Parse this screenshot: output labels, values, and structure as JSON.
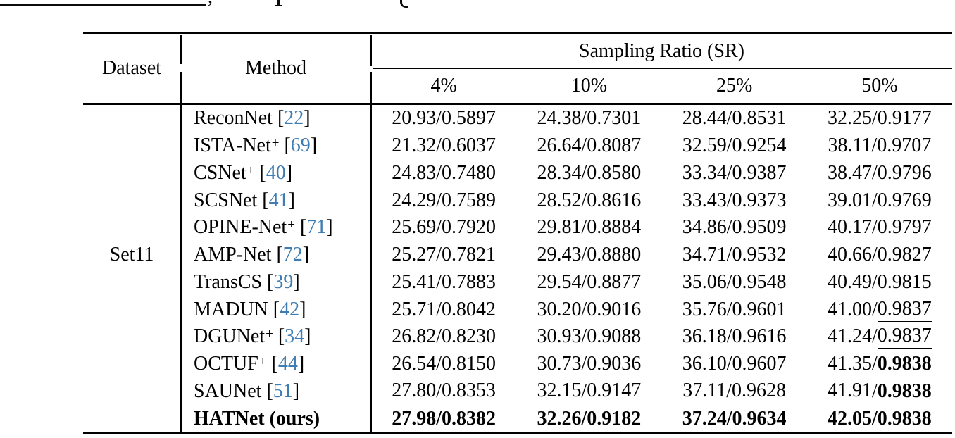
{
  "page": {
    "top_fragment": {
      "comma": ","
    }
  },
  "colors": {
    "text": "#000000",
    "citation": "#3e7cb1",
    "rule": "#000000",
    "background": "#ffffff"
  },
  "table": {
    "header": {
      "dataset": "Dataset",
      "method": "Method",
      "group": "Sampling Ratio (SR)",
      "ratios": [
        "4%",
        "10%",
        "25%",
        "50%"
      ]
    },
    "dataset": {
      "label": "Set11",
      "row_index": 5
    },
    "rows": [
      {
        "method": "ReconNet",
        "sup": "",
        "cite": "22",
        "bold": false,
        "cells": [
          {
            "psnr": "20.93",
            "psnr_style": "",
            "ssim": "0.5897",
            "ssim_style": ""
          },
          {
            "psnr": "24.38",
            "psnr_style": "",
            "ssim": "0.7301",
            "ssim_style": ""
          },
          {
            "psnr": "28.44",
            "psnr_style": "",
            "ssim": "0.8531",
            "ssim_style": ""
          },
          {
            "psnr": "32.25",
            "psnr_style": "",
            "ssim": "0.9177",
            "ssim_style": ""
          }
        ]
      },
      {
        "method": "ISTA-Net",
        "sup": "+",
        "cite": "69",
        "bold": false,
        "cells": [
          {
            "psnr": "21.32",
            "psnr_style": "",
            "ssim": "0.6037",
            "ssim_style": ""
          },
          {
            "psnr": "26.64",
            "psnr_style": "",
            "ssim": "0.8087",
            "ssim_style": ""
          },
          {
            "psnr": "32.59",
            "psnr_style": "",
            "ssim": "0.9254",
            "ssim_style": ""
          },
          {
            "psnr": "38.11",
            "psnr_style": "",
            "ssim": "0.9707",
            "ssim_style": ""
          }
        ]
      },
      {
        "method": "CSNet",
        "sup": "+",
        "cite": "40",
        "bold": false,
        "cells": [
          {
            "psnr": "24.83",
            "psnr_style": "",
            "ssim": "0.7480",
            "ssim_style": ""
          },
          {
            "psnr": "28.34",
            "psnr_style": "",
            "ssim": "0.8580",
            "ssim_style": ""
          },
          {
            "psnr": "33.34",
            "psnr_style": "",
            "ssim": "0.9387",
            "ssim_style": ""
          },
          {
            "psnr": "38.47",
            "psnr_style": "",
            "ssim": "0.9796",
            "ssim_style": ""
          }
        ]
      },
      {
        "method": "SCSNet",
        "sup": "",
        "cite": "41",
        "bold": false,
        "cells": [
          {
            "psnr": "24.29",
            "psnr_style": "",
            "ssim": "0.7589",
            "ssim_style": ""
          },
          {
            "psnr": "28.52",
            "psnr_style": "",
            "ssim": "0.8616",
            "ssim_style": ""
          },
          {
            "psnr": "33.43",
            "psnr_style": "",
            "ssim": "0.9373",
            "ssim_style": ""
          },
          {
            "psnr": "39.01",
            "psnr_style": "",
            "ssim": "0.9769",
            "ssim_style": ""
          }
        ]
      },
      {
        "method": "OPINE-Net",
        "sup": "+",
        "cite": "71",
        "bold": false,
        "cells": [
          {
            "psnr": "25.69",
            "psnr_style": "",
            "ssim": "0.7920",
            "ssim_style": ""
          },
          {
            "psnr": "29.81",
            "psnr_style": "",
            "ssim": "0.8884",
            "ssim_style": ""
          },
          {
            "psnr": "34.86",
            "psnr_style": "",
            "ssim": "0.9509",
            "ssim_style": ""
          },
          {
            "psnr": "40.17",
            "psnr_style": "",
            "ssim": "0.9797",
            "ssim_style": ""
          }
        ]
      },
      {
        "method": "AMP-Net",
        "sup": "",
        "cite": "72",
        "bold": false,
        "cells": [
          {
            "psnr": "25.27",
            "psnr_style": "",
            "ssim": "0.7821",
            "ssim_style": ""
          },
          {
            "psnr": "29.43",
            "psnr_style": "",
            "ssim": "0.8880",
            "ssim_style": ""
          },
          {
            "psnr": "34.71",
            "psnr_style": "",
            "ssim": "0.9532",
            "ssim_style": ""
          },
          {
            "psnr": "40.66",
            "psnr_style": "",
            "ssim": "0.9827",
            "ssim_style": ""
          }
        ]
      },
      {
        "method": "TransCS",
        "sup": "",
        "cite": "39",
        "bold": false,
        "cells": [
          {
            "psnr": "25.41",
            "psnr_style": "",
            "ssim": "0.7883",
            "ssim_style": ""
          },
          {
            "psnr": "29.54",
            "psnr_style": "",
            "ssim": "0.8877",
            "ssim_style": ""
          },
          {
            "psnr": "35.06",
            "psnr_style": "",
            "ssim": "0.9548",
            "ssim_style": ""
          },
          {
            "psnr": "40.49",
            "psnr_style": "",
            "ssim": "0.9815",
            "ssim_style": ""
          }
        ]
      },
      {
        "method": "MADUN",
        "sup": "",
        "cite": "42",
        "bold": false,
        "cells": [
          {
            "psnr": "25.71",
            "psnr_style": "",
            "ssim": "0.8042",
            "ssim_style": ""
          },
          {
            "psnr": "30.20",
            "psnr_style": "",
            "ssim": "0.9016",
            "ssim_style": ""
          },
          {
            "psnr": "35.76",
            "psnr_style": "",
            "ssim": "0.9601",
            "ssim_style": ""
          },
          {
            "psnr": "41.00",
            "psnr_style": "",
            "ssim": "0.9837",
            "ssim_style": "u"
          }
        ]
      },
      {
        "method": "DGUNet",
        "sup": "+",
        "cite": "34",
        "bold": false,
        "cells": [
          {
            "psnr": "26.82",
            "psnr_style": "",
            "ssim": "0.8230",
            "ssim_style": ""
          },
          {
            "psnr": "30.93",
            "psnr_style": "",
            "ssim": "0.9088",
            "ssim_style": ""
          },
          {
            "psnr": "36.18",
            "psnr_style": "",
            "ssim": "0.9616",
            "ssim_style": ""
          },
          {
            "psnr": "41.24",
            "psnr_style": "",
            "ssim": "0.9837",
            "ssim_style": "u"
          }
        ]
      },
      {
        "method": "OCTUF",
        "sup": "+",
        "cite": "44",
        "bold": false,
        "cells": [
          {
            "psnr": "26.54",
            "psnr_style": "",
            "ssim": "0.8150",
            "ssim_style": ""
          },
          {
            "psnr": "30.73",
            "psnr_style": "",
            "ssim": "0.9036",
            "ssim_style": ""
          },
          {
            "psnr": "36.10",
            "psnr_style": "",
            "ssim": "0.9607",
            "ssim_style": ""
          },
          {
            "psnr": "41.35",
            "psnr_style": "",
            "ssim": "0.9838",
            "ssim_style": "b"
          }
        ]
      },
      {
        "method": "SAUNet",
        "sup": "",
        "cite": "51",
        "bold": false,
        "cells": [
          {
            "psnr": "27.80",
            "psnr_style": "u",
            "ssim": "0.8353",
            "ssim_style": "u"
          },
          {
            "psnr": "32.15",
            "psnr_style": "u",
            "ssim": "0.9147",
            "ssim_style": "u"
          },
          {
            "psnr": "37.11",
            "psnr_style": "u",
            "ssim": "0.9628",
            "ssim_style": "u"
          },
          {
            "psnr": "41.91",
            "psnr_style": "u",
            "ssim": "0.9838",
            "ssim_style": "b"
          }
        ]
      },
      {
        "method": "HATNet (ours)",
        "sup": "",
        "cite": "",
        "bold": true,
        "cells": [
          {
            "psnr": "27.98",
            "psnr_style": "b",
            "ssim": "0.8382",
            "ssim_style": "b"
          },
          {
            "psnr": "32.26",
            "psnr_style": "b",
            "ssim": "0.9182",
            "ssim_style": "b"
          },
          {
            "psnr": "37.24",
            "psnr_style": "b",
            "ssim": "0.9634",
            "ssim_style": "b"
          },
          {
            "psnr": "42.05",
            "psnr_style": "b",
            "ssim": "0.9838",
            "ssim_style": "b"
          }
        ]
      }
    ]
  }
}
